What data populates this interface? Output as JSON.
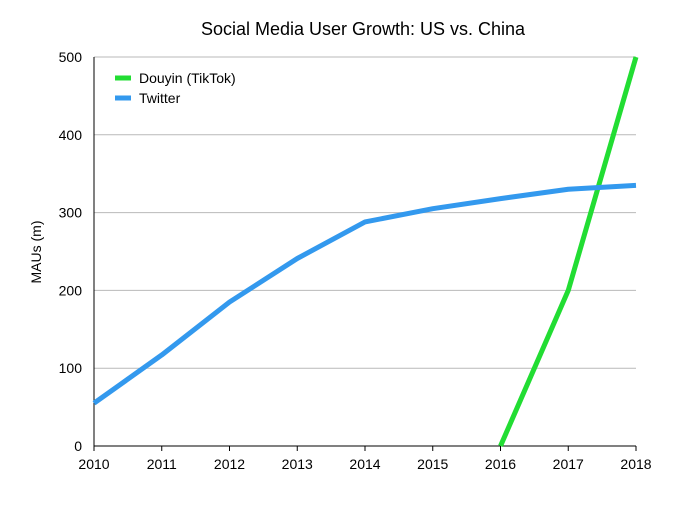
{
  "chart_data": {
    "type": "line",
    "title": "Social Media User Growth: US vs. China",
    "xlabel": "",
    "ylabel": "MAUs (m)",
    "x": [
      2010,
      2011,
      2012,
      2013,
      2014,
      2015,
      2016,
      2017,
      2018
    ],
    "xlim": [
      2010,
      2018
    ],
    "ylim": [
      0,
      500
    ],
    "yticks": [
      0,
      100,
      200,
      300,
      400,
      500
    ],
    "grid": true,
    "legend_position": "top-left",
    "series": [
      {
        "name": "Douyin (TikTok)",
        "color": "#22dd33",
        "points": [
          [
            2016,
            0
          ],
          [
            2017,
            200
          ],
          [
            2018,
            500
          ]
        ]
      },
      {
        "name": "Twitter",
        "color": "#3399ee",
        "points": [
          [
            2010,
            55
          ],
          [
            2011,
            117
          ],
          [
            2012,
            185
          ],
          [
            2013,
            241
          ],
          [
            2014,
            288
          ],
          [
            2015,
            305
          ],
          [
            2016,
            318
          ],
          [
            2017,
            330
          ],
          [
            2018,
            335
          ]
        ]
      }
    ]
  }
}
